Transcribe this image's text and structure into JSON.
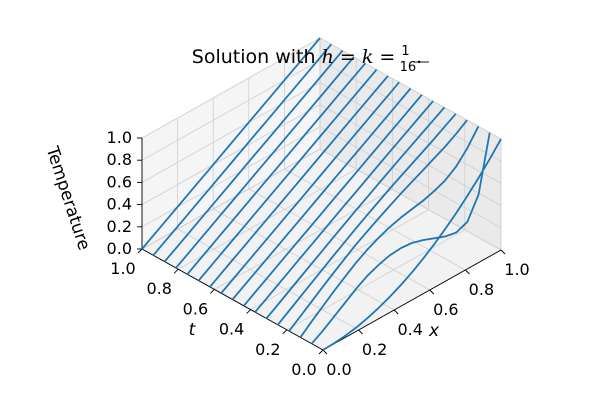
{
  "chart_data": {
    "type": "surface-lines",
    "title": {
      "prefix": "Solution with ",
      "math_h": "h",
      "eq1": " = ",
      "math_k": "k",
      "eq2": " = ",
      "frac_num": "1",
      "frac_den": "16",
      "suffix": "."
    },
    "xlabel": "x",
    "ylabel": "t",
    "zlabel": "Temperature",
    "xlim": [
      0,
      1
    ],
    "ylim": [
      0,
      1
    ],
    "zlim": [
      0,
      1
    ],
    "xticks": [
      "0.0",
      "0.2",
      "0.4",
      "0.6",
      "0.8",
      "1.0"
    ],
    "yticks": [
      "0.0",
      "0.2",
      "0.4",
      "0.6",
      "0.8",
      "1.0"
    ],
    "zticks": [
      "0.0",
      "0.2",
      "0.4",
      "0.6",
      "0.8",
      "1.0"
    ],
    "grid": true,
    "line_color": "#1f77b4",
    "x": [
      0,
      0.0625,
      0.125,
      0.1875,
      0.25,
      0.3125,
      0.375,
      0.4375,
      0.5,
      0.5625,
      0.625,
      0.6875,
      0.75,
      0.8125,
      0.875,
      0.9375,
      1.0
    ],
    "series": [
      {
        "t": 0.0,
        "values": [
          0,
          0.004,
          0.016,
          0.035,
          0.0625,
          0.098,
          0.141,
          0.191,
          0.25,
          0.316,
          0.391,
          0.473,
          0.5625,
          0.66,
          0.766,
          0.879,
          1.0
        ]
      },
      {
        "t": 0.0625,
        "values": [
          0,
          0.06,
          0.13,
          0.2,
          0.27,
          0.33,
          0.37,
          0.4,
          0.41,
          0.4,
          0.37,
          0.33,
          0.29,
          0.27,
          0.31,
          0.5,
          1.0
        ]
      },
      {
        "t": 0.125,
        "values": [
          0,
          0.085,
          0.165,
          0.245,
          0.32,
          0.39,
          0.45,
          0.5,
          0.54,
          0.57,
          0.59,
          0.61,
          0.64,
          0.68,
          0.75,
          0.86,
          1.0
        ]
      },
      {
        "t": 0.1875,
        "values": [
          0,
          0.075,
          0.15,
          0.225,
          0.3,
          0.37,
          0.44,
          0.5,
          0.56,
          0.615,
          0.67,
          0.72,
          0.77,
          0.82,
          0.87,
          0.93,
          1.0
        ]
      },
      {
        "t": 0.25,
        "values": [
          0,
          0.068,
          0.136,
          0.204,
          0.272,
          0.34,
          0.405,
          0.47,
          0.535,
          0.595,
          0.655,
          0.712,
          0.768,
          0.823,
          0.88,
          0.94,
          1.0
        ]
      },
      {
        "t": 0.3125,
        "values": [
          0,
          0.065,
          0.13,
          0.195,
          0.26,
          0.325,
          0.39,
          0.454,
          0.518,
          0.58,
          0.642,
          0.703,
          0.763,
          0.823,
          0.882,
          0.941,
          1.0
        ]
      },
      {
        "t": 0.375,
        "values": [
          0,
          0.064,
          0.128,
          0.191,
          0.255,
          0.318,
          0.381,
          0.444,
          0.507,
          0.569,
          0.632,
          0.694,
          0.756,
          0.818,
          0.879,
          0.94,
          1.0
        ]
      },
      {
        "t": 0.4375,
        "values": [
          0,
          0.063,
          0.126,
          0.189,
          0.252,
          0.314,
          0.377,
          0.439,
          0.502,
          0.564,
          0.626,
          0.689,
          0.751,
          0.813,
          0.875,
          0.938,
          1.0
        ]
      },
      {
        "t": 0.5,
        "values": [
          0,
          0.0625,
          0.125,
          0.1875,
          0.25,
          0.3125,
          0.375,
          0.4375,
          0.5,
          0.5625,
          0.625,
          0.6875,
          0.75,
          0.8125,
          0.875,
          0.9375,
          1.0
        ]
      },
      {
        "t": 0.5625,
        "values": [
          0,
          0.0625,
          0.125,
          0.1875,
          0.25,
          0.3125,
          0.375,
          0.4375,
          0.5,
          0.5625,
          0.625,
          0.6875,
          0.75,
          0.8125,
          0.875,
          0.9375,
          1.0
        ]
      },
      {
        "t": 0.625,
        "values": [
          0,
          0.0625,
          0.125,
          0.1875,
          0.25,
          0.3125,
          0.375,
          0.4375,
          0.5,
          0.5625,
          0.625,
          0.6875,
          0.75,
          0.8125,
          0.875,
          0.9375,
          1.0
        ]
      },
      {
        "t": 0.6875,
        "values": [
          0,
          0.0625,
          0.125,
          0.1875,
          0.25,
          0.3125,
          0.375,
          0.4375,
          0.5,
          0.5625,
          0.625,
          0.6875,
          0.75,
          0.8125,
          0.875,
          0.9375,
          1.0
        ]
      },
      {
        "t": 0.75,
        "values": [
          0,
          0.0625,
          0.125,
          0.1875,
          0.25,
          0.3125,
          0.375,
          0.4375,
          0.5,
          0.5625,
          0.625,
          0.6875,
          0.75,
          0.8125,
          0.875,
          0.9375,
          1.0
        ]
      },
      {
        "t": 0.8125,
        "values": [
          0,
          0.0625,
          0.125,
          0.1875,
          0.25,
          0.3125,
          0.375,
          0.4375,
          0.5,
          0.5625,
          0.625,
          0.6875,
          0.75,
          0.8125,
          0.875,
          0.9375,
          1.0
        ]
      },
      {
        "t": 0.875,
        "values": [
          0,
          0.0625,
          0.125,
          0.1875,
          0.25,
          0.3125,
          0.375,
          0.4375,
          0.5,
          0.5625,
          0.625,
          0.6875,
          0.75,
          0.8125,
          0.875,
          0.9375,
          1.0
        ]
      },
      {
        "t": 0.9375,
        "values": [
          0,
          0.0625,
          0.125,
          0.1875,
          0.25,
          0.3125,
          0.375,
          0.4375,
          0.5,
          0.5625,
          0.625,
          0.6875,
          0.75,
          0.8125,
          0.875,
          0.9375,
          1.0
        ]
      },
      {
        "t": 1.0,
        "values": [
          0,
          0.0625,
          0.125,
          0.1875,
          0.25,
          0.3125,
          0.375,
          0.4375,
          0.5,
          0.5625,
          0.625,
          0.6875,
          0.75,
          0.8125,
          0.875,
          0.9375,
          1.0
        ]
      }
    ]
  }
}
